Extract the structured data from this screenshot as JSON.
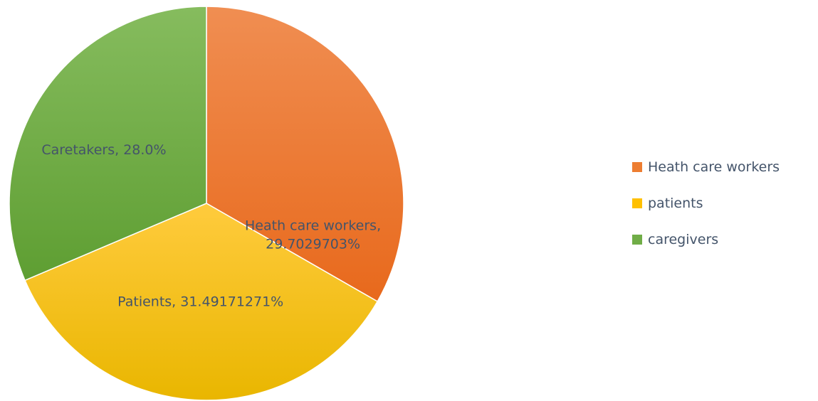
{
  "chart_data": {
    "type": "pie",
    "title": "",
    "slices": [
      {
        "name": "Heath care workers",
        "value": 29.7029703,
        "label": [
          "Heath care workers,",
          "29.7029703%"
        ],
        "color_top": "#F08E52",
        "color_bottom": "#E8691C"
      },
      {
        "name": "patients",
        "value": 31.49171271,
        "label": [
          "Patients, 31.49171271%"
        ],
        "color_top": "#FFCB3D",
        "color_bottom": "#E9B600"
      },
      {
        "name": "caregivers",
        "value": 28.0,
        "label": [
          "Caretakers, 28.0%"
        ],
        "color_top": "#86BC5E",
        "color_bottom": "#5E9E32"
      }
    ],
    "legend": {
      "position": "right",
      "items": [
        {
          "label": "Heath care workers",
          "color": "#ED7D31"
        },
        {
          "label": "patients",
          "color": "#FFC000"
        },
        {
          "label": "caregivers",
          "color": "#70AD47"
        }
      ]
    },
    "label_color": "#44546A"
  }
}
